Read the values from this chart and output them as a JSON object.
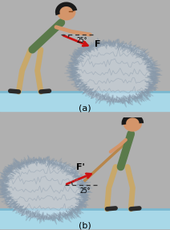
{
  "bg_color": "#b0b0b0",
  "panel_bg": "#c0c0c0",
  "ground_color": "#a8d8e8",
  "ground_edge": "#7ab8d0",
  "rock_color": "#d0dde8",
  "rock_edge": "#8899aa",
  "person_skin": "#d4956a",
  "person_hair": "#1a1a1a",
  "person_shirt": "#5a7a4a",
  "person_pants": "#c8a86a",
  "person_shoes": "#2a2a2a",
  "arrow_color": "#cc1111",
  "rope_color": "#b8864a",
  "dashed_color": "#333333",
  "label_a": "(a)",
  "label_b": "(b)",
  "angle_a": "25°",
  "angle_b": "25°",
  "force_label_a": "F",
  "force_label_b": "F'"
}
